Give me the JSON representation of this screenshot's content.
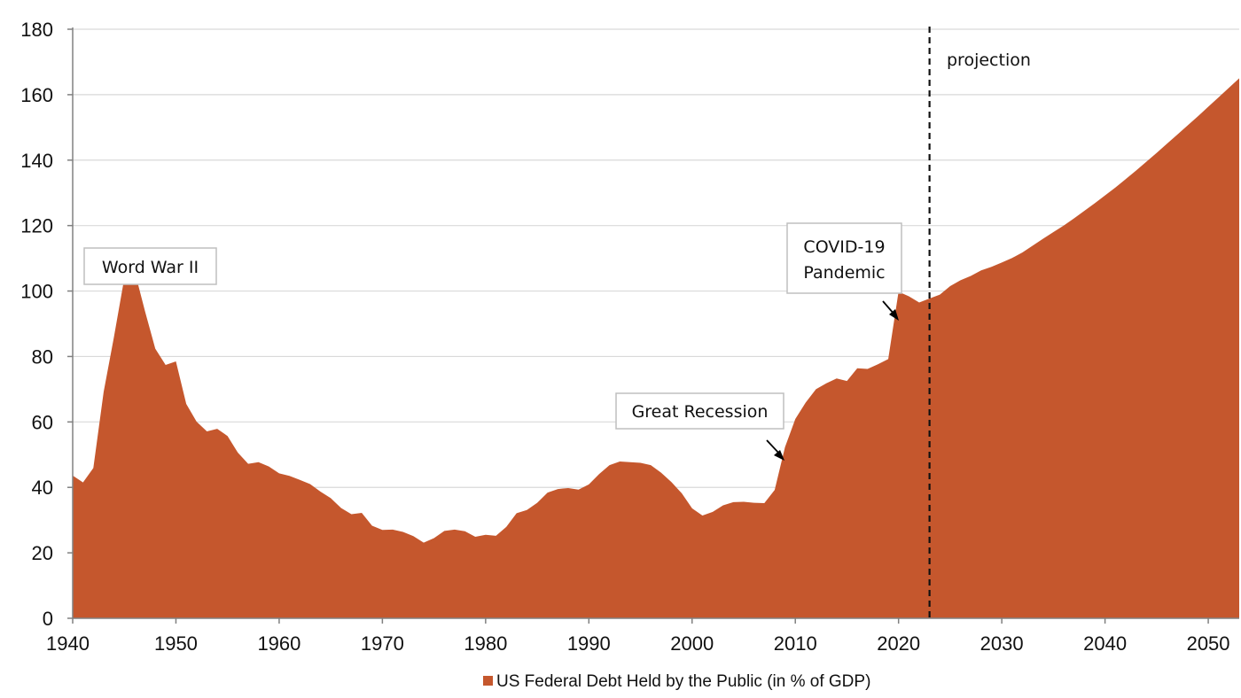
{
  "chart_data": {
    "type": "area",
    "title": "",
    "xlabel": "",
    "ylabel": "",
    "xlim": [
      1940,
      2053
    ],
    "ylim": [
      0,
      180
    ],
    "grid": true,
    "legend_placement": "bottom-center",
    "x_ticks": [
      1940,
      1950,
      1960,
      1970,
      1980,
      1990,
      2000,
      2010,
      2020,
      2030,
      2040,
      2050
    ],
    "y_ticks": [
      0,
      20,
      40,
      60,
      80,
      100,
      120,
      140,
      160,
      180
    ],
    "colors": {
      "area": "#C5572D",
      "grid": "#D9D9D9",
      "axis": "#808080",
      "projection_line": "#111111"
    },
    "series": [
      {
        "name": "US Federal Debt Held by the Public (in % of GDP)",
        "x": [
          1940,
          1941,
          1942,
          1943,
          1944,
          1945,
          1946,
          1947,
          1948,
          1949,
          1950,
          1951,
          1952,
          1953,
          1954,
          1955,
          1956,
          1957,
          1958,
          1959,
          1960,
          1961,
          1962,
          1963,
          1964,
          1965,
          1966,
          1967,
          1968,
          1969,
          1970,
          1971,
          1972,
          1973,
          1974,
          1975,
          1976,
          1977,
          1978,
          1979,
          1980,
          1981,
          1982,
          1983,
          1984,
          1985,
          1986,
          1987,
          1988,
          1989,
          1990,
          1991,
          1992,
          1993,
          1994,
          1995,
          1996,
          1997,
          1998,
          1999,
          2000,
          2001,
          2002,
          2003,
          2004,
          2005,
          2006,
          2007,
          2008,
          2009,
          2010,
          2011,
          2012,
          2013,
          2014,
          2015,
          2016,
          2017,
          2018,
          2019,
          2020,
          2021,
          2022,
          2023,
          2024,
          2025,
          2026,
          2027,
          2028,
          2029,
          2030,
          2031,
          2032,
          2033,
          2034,
          2035,
          2036,
          2037,
          2038,
          2039,
          2040,
          2041,
          2042,
          2043,
          2044,
          2045,
          2046,
          2047,
          2048,
          2049,
          2050,
          2051,
          2052,
          2053
        ],
        "values": [
          43.6,
          41.5,
          45.9,
          69.2,
          86.0,
          103.9,
          106.1,
          93.9,
          82.4,
          77.4,
          78.5,
          65.5,
          60.1,
          57.1,
          57.9,
          55.7,
          50.6,
          47.2,
          47.7,
          46.4,
          44.3,
          43.5,
          42.3,
          41.0,
          38.7,
          36.7,
          33.7,
          31.8,
          32.2,
          28.3,
          27.0,
          27.1,
          26.4,
          25.1,
          23.1,
          24.5,
          26.7,
          27.1,
          26.6,
          24.9,
          25.5,
          25.2,
          27.9,
          32.1,
          33.1,
          35.3,
          38.4,
          39.5,
          39.8,
          39.3,
          40.9,
          44.1,
          46.8,
          47.9,
          47.7,
          47.5,
          46.8,
          44.5,
          41.6,
          38.2,
          33.6,
          31.4,
          32.5,
          34.5,
          35.5,
          35.6,
          35.3,
          35.2,
          39.2,
          52.3,
          60.9,
          65.9,
          70.0,
          71.8,
          73.3,
          72.5,
          76.4,
          76.2,
          77.6,
          79.2,
          99.8,
          98.4,
          96.5,
          97.7,
          98.9,
          101.5,
          103.3,
          104.6,
          106.3,
          107.4,
          108.7,
          110.1,
          111.8,
          113.9,
          116.0,
          118.0,
          120.0,
          122.2,
          124.5,
          126.8,
          129.2,
          131.6,
          134.2,
          136.8,
          139.5,
          142.2,
          145.0,
          147.8,
          150.6,
          153.4,
          156.3,
          159.2,
          162.1,
          165.0
        ]
      }
    ],
    "projection_start_x": 2023,
    "annotations": [
      {
        "label_lines": [
          "Word War II"
        ]
      },
      {
        "label_lines": [
          "Great Recession"
        ]
      },
      {
        "label_lines": [
          "COVID-19",
          "Pandemic"
        ]
      },
      {
        "label_lines": [
          "projection"
        ]
      }
    ]
  }
}
